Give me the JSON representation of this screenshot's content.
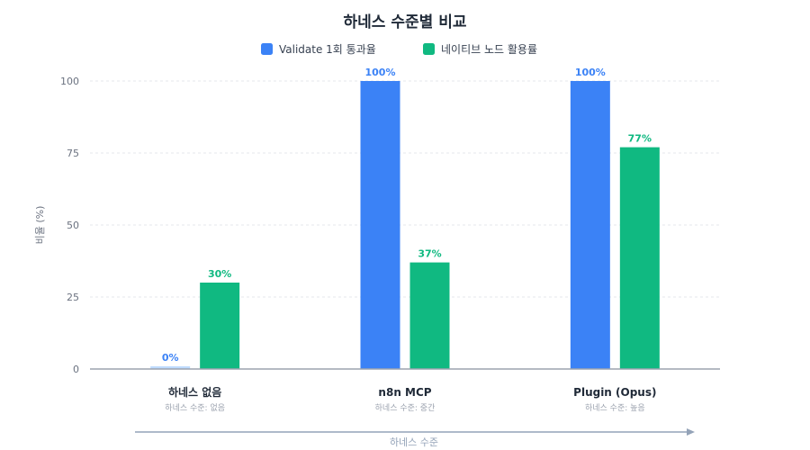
{
  "chart_data": {
    "type": "bar",
    "title": "하네스 수준별 비교",
    "categories": [
      "하네스 없음",
      "n8n MCP",
      "Plugin (Opus)"
    ],
    "category_sublabels": [
      "하네스 수준: 없음",
      "하네스 수준: 중간",
      "하네스 수준: 높음"
    ],
    "series": [
      {
        "name": "Validate 1회 통과율",
        "values": [
          0,
          100,
          100
        ],
        "labels": [
          "0%",
          "100%",
          "100%"
        ],
        "color": "#3b82f6",
        "zero_color": "#bfdbfe"
      },
      {
        "name": "네이티브 노드 활용률",
        "values": [
          30,
          37,
          77
        ],
        "labels": [
          "30%",
          "37%",
          "77%"
        ],
        "color": "#10b981"
      }
    ],
    "ylabel": "비율 (%)",
    "xlabel": "하네스 수준",
    "ylim": [
      0,
      100
    ],
    "yticks": [
      0,
      25,
      50,
      75,
      100
    ],
    "ytick_labels": [
      "0",
      "25",
      "50",
      "75",
      "100"
    ],
    "grid": true,
    "legend_position": "top-center"
  }
}
